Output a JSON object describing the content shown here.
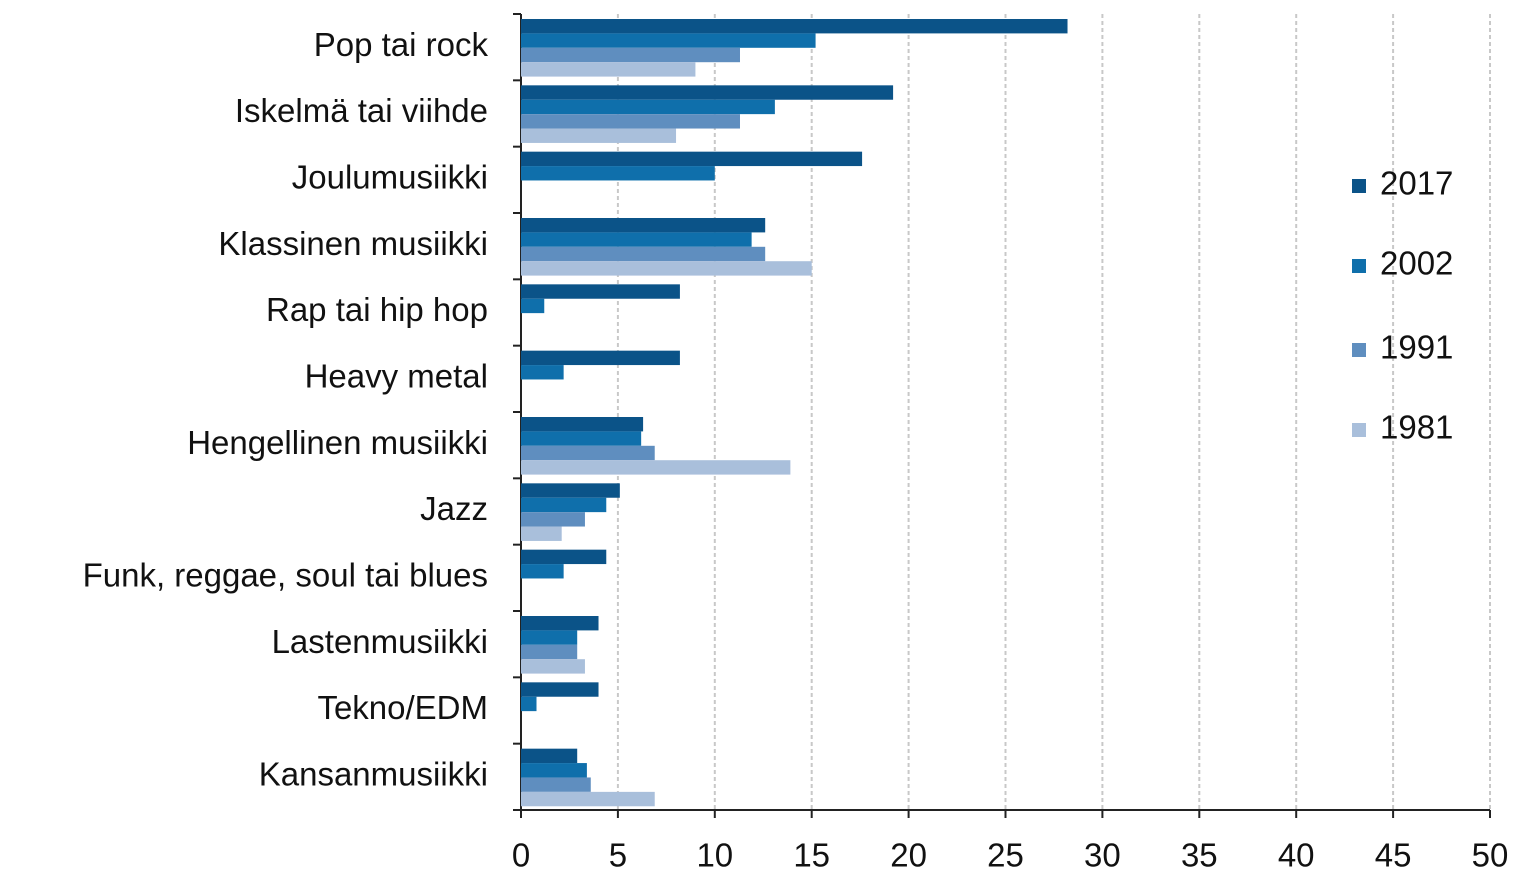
{
  "chart_data": {
    "type": "hbar",
    "categories": [
      "Pop tai rock",
      "Iskelmä tai viihde",
      "Joulumusiikki",
      "Klassinen musiikki",
      "Rap tai hip hop",
      "Heavy metal",
      "Hengellinen musiikki",
      "Jazz",
      "Funk, reggae, soul tai blues",
      "Lastenmusiikki",
      "Tekno/EDM",
      "Kansanmusiikki"
    ],
    "series": [
      {
        "name": "2017",
        "color": "#0b5388",
        "values": [
          28.2,
          19.2,
          17.6,
          12.6,
          8.2,
          8.2,
          6.3,
          5.1,
          4.4,
          4.0,
          4.0,
          2.9
        ]
      },
      {
        "name": "2002",
        "color": "#0f6fab",
        "values": [
          15.2,
          13.1,
          10.0,
          11.9,
          1.2,
          2.2,
          6.2,
          4.4,
          2.2,
          2.9,
          0.8,
          3.4
        ]
      },
      {
        "name": "1991",
        "color": "#5f8ebf",
        "values": [
          11.3,
          11.3,
          null,
          12.6,
          null,
          null,
          6.9,
          3.3,
          null,
          2.9,
          null,
          3.6
        ]
      },
      {
        "name": "1981",
        "color": "#a9bfdb",
        "values": [
          9.0,
          8.0,
          null,
          15.0,
          null,
          null,
          13.9,
          2.1,
          null,
          3.3,
          null,
          6.9
        ]
      }
    ],
    "xlim": [
      0,
      50
    ],
    "xticks": [
      0,
      5,
      10,
      15,
      20,
      25,
      30,
      35,
      40,
      45,
      50
    ],
    "grid": true,
    "legend": "right"
  }
}
